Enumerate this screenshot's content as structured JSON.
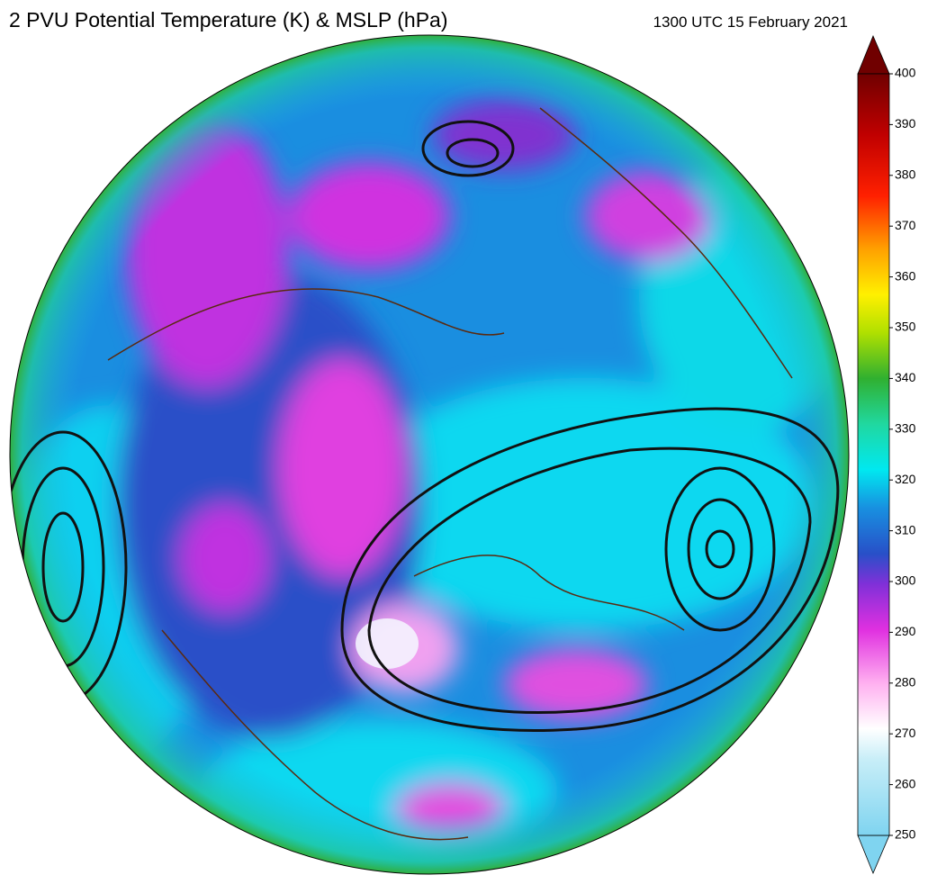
{
  "header": {
    "title": "2 PVU Potential Temperature (K) & MSLP (hPa)",
    "valid_time": "1300 UTC 15 February 2021"
  },
  "colorbar": {
    "lim": [
      250,
      400
    ],
    "ticks": [
      250,
      260,
      270,
      280,
      290,
      300,
      310,
      320,
      330,
      340,
      350,
      360,
      370,
      380,
      390,
      400
    ]
  }
}
